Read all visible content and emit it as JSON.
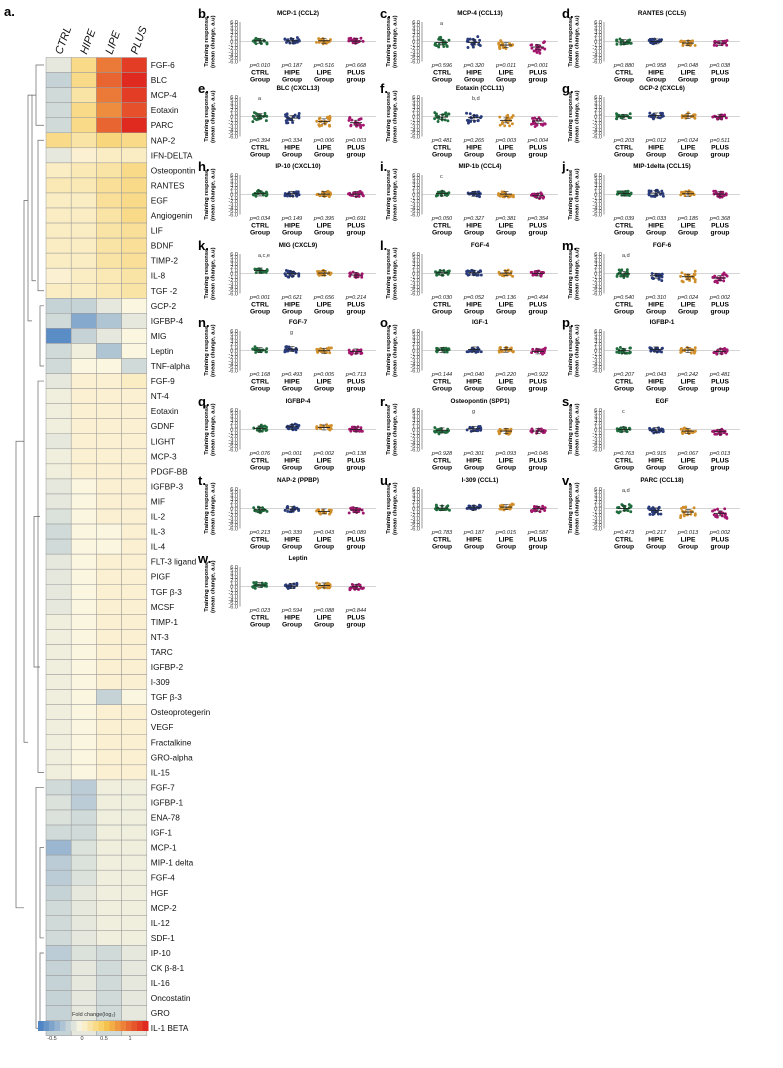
{
  "colors": {
    "CTRL": "#1f6b3c",
    "HIPE": "#283a7a",
    "LIPE": "#d18f2b",
    "PLUS": "#a3166e",
    "heat_low": "#4f85c4",
    "heat_mid": "#fbf6e0",
    "heat_high": "#e02a1f"
  },
  "heatmap": {
    "panel_label": "a.",
    "columns": [
      "CTRL",
      "HIPE",
      "LIPE",
      "PLUS"
    ],
    "rows": [
      "FGF-6",
      "BLC",
      "MCP-4",
      "Eotaxin",
      "PARC",
      "NAP-2",
      "IFN-DELTA",
      "Osteopontin",
      "RANTES",
      "EGF",
      "Angiogenin",
      "LIF",
      "BDNF",
      "TIMP-2",
      "IL-8",
      "TGF -2",
      "GCP-2",
      "IGFBP-4",
      "MIG",
      "Leptin",
      "TNF-alpha",
      "FGF-9",
      "NT-4",
      "Eotaxin",
      "GDNF",
      "LIGHT",
      "MCP-3",
      "PDGF-BB",
      "IGFBP-3",
      "MIF",
      "IL-2",
      "IL-3",
      "IL-4",
      "FLT-3 ligand",
      "PIGF",
      "TGF β-3",
      "MCSF",
      "TIMP-1",
      "NT-3",
      "TARC",
      "IGFBP-2",
      "I-309",
      "TGF β-3",
      "Osteoprotegerin",
      "VEGF",
      "Fractalkine",
      "GRO-alpha",
      "IL-15",
      "FGF-7",
      "IGFBP-1",
      "ENA-78",
      "IGF-1",
      "MCP-1",
      "MIP-1 delta",
      "FGF-4",
      "HGF",
      "MCP-2",
      "IL-12",
      "SDF-1",
      "IP-10",
      "CK β-8-1",
      "IL-16",
      "Oncostatin",
      "GRO",
      "IL-1 BETA"
    ],
    "values": [
      [
        -0.1,
        0.3,
        0.9,
        1.2
      ],
      [
        -0.25,
        0.3,
        1.0,
        1.3
      ],
      [
        -0.2,
        0.2,
        0.9,
        1.2
      ],
      [
        -0.2,
        0.3,
        0.8,
        1.1
      ],
      [
        -0.2,
        0.3,
        1.0,
        1.3
      ],
      [
        0.3,
        0.2,
        0.35,
        0.3
      ],
      [
        -0.1,
        0.05,
        0.1,
        0.1
      ],
      [
        0.1,
        0.15,
        0.2,
        0.3
      ],
      [
        0.15,
        0.15,
        0.25,
        0.3
      ],
      [
        0.1,
        0.1,
        0.25,
        0.3
      ],
      [
        0.1,
        0.1,
        0.2,
        0.3
      ],
      [
        0.1,
        0.1,
        0.2,
        0.25
      ],
      [
        0.1,
        0.1,
        0.2,
        0.25
      ],
      [
        0.1,
        0.1,
        0.2,
        0.25
      ],
      [
        0.05,
        0.1,
        0.15,
        0.2
      ],
      [
        0.1,
        0.1,
        0.15,
        0.2
      ],
      [
        -0.25,
        -0.25,
        -0.1,
        0.0
      ],
      [
        -0.2,
        -0.55,
        -0.35,
        -0.1
      ],
      [
        -0.75,
        -0.25,
        -0.1,
        0.0
      ],
      [
        -0.2,
        -0.05,
        -0.35,
        0.0
      ],
      [
        -0.2,
        0.0,
        0.0,
        -0.2
      ],
      [
        -0.1,
        0.05,
        0.05,
        0.1
      ],
      [
        -0.05,
        0.05,
        0.05,
        0.05
      ],
      [
        -0.05,
        0.05,
        0.05,
        0.05
      ],
      [
        -0.05,
        0.05,
        0.05,
        0.05
      ],
      [
        -0.1,
        0.05,
        0.05,
        0.05
      ],
      [
        -0.05,
        0.05,
        0.05,
        0.05
      ],
      [
        -0.05,
        0.05,
        0.05,
        0.05
      ],
      [
        -0.1,
        0.0,
        0.05,
        0.05
      ],
      [
        -0.1,
        0.0,
        0.05,
        0.05
      ],
      [
        -0.15,
        0.0,
        0.05,
        0.05
      ],
      [
        -0.2,
        0.0,
        0.0,
        0.05
      ],
      [
        -0.2,
        0.0,
        0.0,
        0.05
      ],
      [
        -0.1,
        0.0,
        0.05,
        0.05
      ],
      [
        -0.1,
        0.0,
        0.05,
        0.05
      ],
      [
        -0.1,
        0.0,
        0.05,
        0.05
      ],
      [
        -0.1,
        0.0,
        0.05,
        0.05
      ],
      [
        -0.05,
        0.0,
        0.05,
        0.05
      ],
      [
        -0.05,
        0.0,
        0.05,
        0.05
      ],
      [
        -0.05,
        0.0,
        0.05,
        0.05
      ],
      [
        -0.05,
        0.0,
        0.05,
        0.05
      ],
      [
        -0.05,
        0.0,
        0.05,
        0.05
      ],
      [
        -0.05,
        0.0,
        -0.25,
        0.0
      ],
      [
        -0.05,
        0.0,
        0.05,
        0.05
      ],
      [
        -0.05,
        0.0,
        0.05,
        0.05
      ],
      [
        -0.05,
        0.0,
        0.05,
        0.05
      ],
      [
        -0.05,
        0.0,
        0.05,
        0.05
      ],
      [
        -0.05,
        0.0,
        0.05,
        0.05
      ],
      [
        -0.2,
        -0.3,
        -0.05,
        -0.05
      ],
      [
        -0.15,
        -0.3,
        -0.05,
        -0.05
      ],
      [
        -0.15,
        -0.2,
        -0.05,
        -0.05
      ],
      [
        -0.2,
        -0.2,
        -0.05,
        -0.05
      ],
      [
        -0.45,
        -0.15,
        -0.05,
        -0.05
      ],
      [
        -0.3,
        -0.15,
        -0.05,
        -0.05
      ],
      [
        -0.3,
        -0.15,
        -0.05,
        -0.05
      ],
      [
        -0.25,
        -0.1,
        -0.05,
        -0.05
      ],
      [
        -0.2,
        -0.1,
        -0.05,
        -0.05
      ],
      [
        -0.2,
        -0.1,
        -0.05,
        -0.05
      ],
      [
        -0.2,
        -0.1,
        -0.05,
        -0.05
      ],
      [
        -0.3,
        -0.15,
        -0.2,
        -0.1
      ],
      [
        -0.25,
        -0.1,
        -0.2,
        -0.1
      ],
      [
        -0.25,
        -0.1,
        -0.2,
        -0.1
      ],
      [
        -0.25,
        -0.1,
        -0.2,
        -0.1
      ],
      [
        -0.25,
        -0.1,
        -0.2,
        -0.1
      ],
      [
        -0.25,
        -0.1,
        -0.2,
        -0.1
      ]
    ],
    "legend": {
      "title": "Fold change(log₂)",
      "ticks": [
        "-0.5",
        "0",
        "0.5",
        "1"
      ]
    }
  },
  "common": {
    "ylabel_line1": "Training response",
    "ylabel_line2": "(mean change, a.u)",
    "y_ticks": [
      "6.0",
      "5.0",
      "4.0",
      "3.0",
      "2.0",
      "1.0",
      "0.0",
      "-1.0",
      "-2.0",
      "-3.0",
      "-4.0",
      "-5.0",
      "-6.0"
    ],
    "groups_top": [
      "CTRL",
      "HIPE",
      "LIPE",
      "PLUS"
    ],
    "groups_bottom": [
      "Group",
      "Group",
      "Group",
      "group"
    ]
  },
  "chart_data": [
    {
      "label": "b.",
      "type": "scatter",
      "title": "MCP-1 (CCL2)",
      "ylim": [
        -6,
        6
      ],
      "means": [
        0.3,
        0.3,
        0.3,
        0.2
      ],
      "p": [
        "p=0.010",
        "p=0.187",
        "p=0.516",
        "p=0.668"
      ],
      "sig": [
        "",
        "",
        "",
        ""
      ]
    },
    {
      "label": "c.",
      "type": "scatter",
      "title": "MCP-4 (CCL13)",
      "ylim": [
        -6,
        6
      ],
      "means": [
        -0.2,
        -0.2,
        -1.0,
        -1.6
      ],
      "p": [
        "p=0.596",
        "p=0.320",
        "p=0.011",
        "p=0.001"
      ],
      "sig": [
        "a",
        "",
        "",
        ""
      ]
    },
    {
      "label": "d.",
      "type": "scatter",
      "title": "RANTES (CCL5)",
      "ylim": [
        -6,
        6
      ],
      "means": [
        -0.1,
        0.1,
        -0.4,
        -0.4
      ],
      "p": [
        "p=0.880",
        "p=0.958",
        "p=0.048",
        "p=0.038"
      ],
      "sig": [
        "",
        "",
        "",
        ""
      ]
    },
    {
      "label": "e.",
      "type": "scatter",
      "title": "BLC (CXCL13)",
      "ylim": [
        -6,
        6
      ],
      "means": [
        0.2,
        -0.4,
        -1.4,
        -1.8
      ],
      "p": [
        "p=0.394",
        "p=0.334",
        "p=0.006",
        "p=0.003"
      ],
      "sig": [
        "a",
        "",
        "",
        ""
      ]
    },
    {
      "label": "f.",
      "type": "scatter",
      "title": "Eotaxin (CCL11)",
      "ylim": [
        -6,
        6
      ],
      "means": [
        -0.1,
        -0.3,
        -1.1,
        -1.3
      ],
      "p": [
        "p=0.481",
        "p=0.265",
        "p=0.003",
        "p=0.004"
      ],
      "sig": [
        "",
        "b,d",
        "",
        ""
      ]
    },
    {
      "label": "g.",
      "type": "scatter",
      "title": "GCP-2 (CXCL6)",
      "ylim": [
        -6,
        6
      ],
      "means": [
        0.0,
        0.4,
        0.2,
        0.0
      ],
      "p": [
        "p=0.203",
        "p=0.012",
        "p=0.024",
        "p=0.511"
      ],
      "sig": [
        "",
        "",
        "",
        ""
      ]
    },
    {
      "label": "h.",
      "type": "scatter",
      "title": "IP-10 (CXCL10)",
      "ylim": [
        -6,
        6
      ],
      "means": [
        0.4,
        0.3,
        0.2,
        0.2
      ],
      "p": [
        "p=0.034",
        "p=0.149",
        "p=0.395",
        "p=0.691"
      ],
      "sig": [
        "",
        "",
        "",
        ""
      ]
    },
    {
      "label": "i.",
      "type": "scatter",
      "title": "MIP-1b (CCL4)",
      "ylim": [
        -6,
        6
      ],
      "means": [
        0.4,
        0.3,
        0.2,
        -0.3
      ],
      "p": [
        "p=0.050",
        "p=0.327",
        "p=0.381",
        "p=0.354"
      ],
      "sig": [
        "c",
        "",
        "",
        ""
      ]
    },
    {
      "label": "j.",
      "type": "scatter",
      "title": "MIP-1delta (CCL15)",
      "ylim": [
        -6,
        6
      ],
      "means": [
        0.4,
        0.5,
        0.3,
        0.2
      ],
      "p": [
        "p=0.039",
        "p=0.033",
        "p=0.185",
        "p=0.368"
      ],
      "sig": [
        "",
        "",
        "",
        ""
      ]
    },
    {
      "label": "k.",
      "type": "scatter",
      "title": "MIG (CXCL9)",
      "ylim": [
        -6,
        6
      ],
      "means": [
        1.0,
        0.0,
        0.2,
        -0.4
      ],
      "p": [
        "p=0.001",
        "p=0.621",
        "p=0.656",
        "p=0.214"
      ],
      "sig": [
        "a,c,e",
        "",
        "",
        ""
      ]
    },
    {
      "label": "l.",
      "type": "scatter",
      "title": "FGF-4",
      "ylim": [
        -6,
        6
      ],
      "means": [
        0.3,
        0.3,
        0.2,
        0.1
      ],
      "p": [
        "p=0.030",
        "p=0.052",
        "p=0.136",
        "p=0.494"
      ],
      "sig": [
        "",
        "",
        "",
        ""
      ]
    },
    {
      "label": "m.",
      "type": "scatter",
      "title": "FGF-6",
      "ylim": [
        -6,
        6
      ],
      "means": [
        0.0,
        -0.6,
        -0.9,
        -1.3
      ],
      "p": [
        "p=0.540",
        "p=0.310",
        "p=0.024",
        "p=0.002"
      ],
      "sig": [
        "a,d",
        "",
        "",
        ""
      ]
    },
    {
      "label": "n.",
      "type": "scatter",
      "title": "FGF-7",
      "ylim": [
        -6,
        6
      ],
      "means": [
        0.2,
        0.5,
        0.0,
        -0.2
      ],
      "p": [
        "p=0.168",
        "p=0.493",
        "p=0.005",
        "p=0.713"
      ],
      "sig": [
        "",
        "g",
        "",
        ""
      ]
    },
    {
      "label": "o.",
      "type": "scatter",
      "title": "IGF-1",
      "ylim": [
        -6,
        6
      ],
      "means": [
        0.2,
        0.4,
        0.3,
        -0.2
      ],
      "p": [
        "p=0.144",
        "p=0.040",
        "p=0.220",
        "p=0.922"
      ],
      "sig": [
        "",
        "",
        "",
        ""
      ]
    },
    {
      "label": "p.",
      "type": "scatter",
      "title": "IGFBP-1",
      "ylim": [
        -6,
        6
      ],
      "means": [
        0.0,
        0.4,
        0.2,
        -0.2
      ],
      "p": [
        "p=0.207",
        "p=0.043",
        "p=0.242",
        "p=0.481"
      ],
      "sig": [
        "",
        "",
        "",
        ""
      ]
    },
    {
      "label": "q.",
      "type": "scatter",
      "title": "IGFBP-4",
      "ylim": [
        -6,
        6
      ],
      "means": [
        0.4,
        0.9,
        0.7,
        0.1
      ],
      "p": [
        "p=0.076",
        "p=0.001",
        "p=0.002",
        "p=0.138"
      ],
      "sig": [
        "",
        "",
        "",
        ""
      ]
    },
    {
      "label": "r.",
      "type": "scatter",
      "title": "Osteopontin (SPP1)",
      "ylim": [
        -6,
        6
      ],
      "means": [
        -0.2,
        0.3,
        -0.4,
        -0.4
      ],
      "p": [
        "p=0.928",
        "p=0.301",
        "p=0.093",
        "p=0.045"
      ],
      "sig": [
        "",
        "g",
        "",
        ""
      ]
    },
    {
      "label": "s.",
      "type": "scatter",
      "title": "EGF",
      "ylim": [
        -6,
        6
      ],
      "means": [
        0.1,
        -0.1,
        -0.4,
        -0.6
      ],
      "p": [
        "p=0.763",
        "p=0.915",
        "p=0.067",
        "p=0.013"
      ],
      "sig": [
        "c",
        "",
        "",
        ""
      ]
    },
    {
      "label": "t.",
      "type": "scatter",
      "title": "NAP-2 (PPBP)",
      "ylim": [
        -6,
        6
      ],
      "means": [
        -0.3,
        -0.1,
        -0.8,
        -0.4
      ],
      "p": [
        "p=0.213",
        "p=0.339",
        "p=0.043",
        "p=0.089"
      ],
      "sig": [
        "",
        "",
        "",
        ""
      ]
    },
    {
      "label": "u.",
      "type": "scatter",
      "title": "I-309 (CCL1)",
      "ylim": [
        -6,
        6
      ],
      "means": [
        0.2,
        0.3,
        0.5,
        0.0
      ],
      "p": [
        "p=0.783",
        "p=0.187",
        "p=0.015",
        "p=0.587"
      ],
      "sig": [
        "",
        "",
        "",
        ""
      ]
    },
    {
      "label": "v.",
      "type": "scatter",
      "title": "PARC (CCL18)",
      "ylim": [
        -6,
        6
      ],
      "means": [
        0.1,
        -0.5,
        -1.0,
        -1.4
      ],
      "p": [
        "p=0.473",
        "p=0.217",
        "p=0.013",
        "p=0.002"
      ],
      "sig": [
        "a,d",
        "",
        "",
        ""
      ]
    },
    {
      "label": "w.",
      "type": "scatter",
      "title": "Leptin",
      "ylim": [
        -6,
        6
      ],
      "means": [
        0.5,
        0.2,
        0.4,
        0.0
      ],
      "p": [
        "p=0.023",
        "p=0.594",
        "p=0.088",
        "p=0.844"
      ],
      "sig": [
        "",
        "",
        "",
        ""
      ]
    }
  ]
}
